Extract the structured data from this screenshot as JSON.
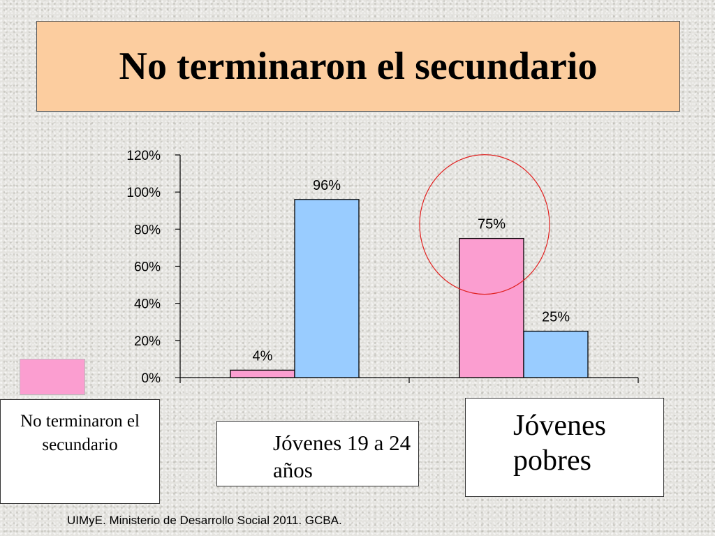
{
  "slide": {
    "title": "No terminaron el secundario",
    "source": "UIMyE. Ministerio de Desarrollo Social 2011. GCBA."
  },
  "legend": {
    "label": "No terminaron el secundario",
    "color": "#fb9ed0"
  },
  "categories_display": [
    "Jóvenes 19 a 24 años",
    "Jóvenes pobres"
  ],
  "chart_data": {
    "type": "bar",
    "categories": [
      "Jóvenes 19 a 24 años",
      "Jóvenes pobres"
    ],
    "series": [
      {
        "name": "No terminaron el secundario",
        "color": "#fb9ed0",
        "values": [
          4,
          75
        ],
        "labels": [
          "4%",
          "75%"
        ]
      },
      {
        "color": "#99ccff",
        "values": [
          96,
          25
        ],
        "labels": [
          "96%",
          "25%"
        ]
      }
    ],
    "yticks": [
      "0%",
      "20%",
      "40%",
      "60%",
      "80%",
      "100%",
      "120%"
    ],
    "ylim": [
      0,
      120
    ],
    "grid": false,
    "annotation": {
      "type": "circle",
      "color": "#e0201f",
      "target": "Jóvenes pobres — 75%"
    }
  }
}
